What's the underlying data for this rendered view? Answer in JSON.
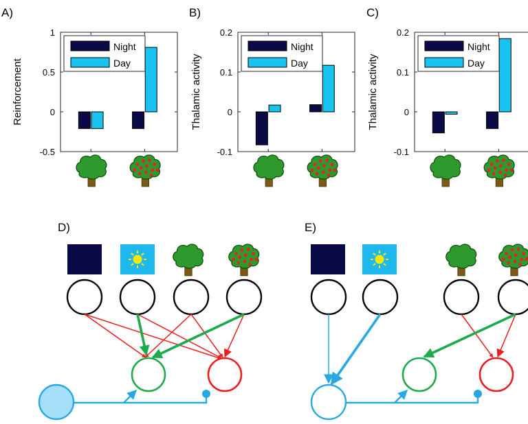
{
  "colors": {
    "night": "#0a0a46",
    "day": "#19c3f0",
    "tree_leaf": "#2e9a2e",
    "tree_trunk": "#7a5a14",
    "fruit": "#e8202a",
    "green_conn": "#1caa4a",
    "red_conn": "#ee1c1c",
    "blue_conn": "#27a8e3",
    "sun": "#ffe600",
    "moon": "#ffe600",
    "sky_night": "#0a0a46",
    "sky_day": "#1fb8ee"
  },
  "chart_data": [
    {
      "type": "bar",
      "panel": "A)",
      "ylabel": "Reinforcement",
      "ylim": [
        -0.5,
        1
      ],
      "yticks": [
        "-0.5",
        "0",
        "0.5",
        "1"
      ],
      "ytick_values": [
        -0.5,
        0,
        0.5,
        1
      ],
      "categories": [
        "tree",
        "fruit-tree"
      ],
      "series": [
        {
          "name": "Night",
          "values": [
            -0.21,
            -0.21
          ]
        },
        {
          "name": "Day",
          "values": [
            -0.21,
            0.81
          ]
        }
      ],
      "legend": "top-left"
    },
    {
      "type": "bar",
      "panel": "B)",
      "ylabel": "Thalamic activity",
      "ylim": [
        -0.1,
        0.2
      ],
      "yticks": [
        "-0.1",
        "0",
        "0.1",
        "0.2"
      ],
      "ytick_values": [
        -0.1,
        0,
        0.1,
        0.2
      ],
      "categories": [
        "tree",
        "fruit-tree"
      ],
      "series": [
        {
          "name": "Night",
          "values": [
            -0.083,
            0.018
          ]
        },
        {
          "name": "Day",
          "values": [
            0.017,
            0.117
          ]
        }
      ],
      "legend": "top-left"
    },
    {
      "type": "bar",
      "panel": "C)",
      "ylabel": "Thalamic activity",
      "ylim": [
        -0.1,
        0.2
      ],
      "yticks": [
        "-0.1",
        "0",
        "0.1",
        "0.2"
      ],
      "ytick_values": [
        -0.1,
        0,
        0.1,
        0.2
      ],
      "categories": [
        "tree",
        "fruit-tree"
      ],
      "series": [
        {
          "name": "Night",
          "values": [
            -0.053,
            -0.042
          ]
        },
        {
          "name": "Day",
          "values": [
            -0.006,
            0.184
          ]
        }
      ],
      "legend": "top-left"
    }
  ],
  "diagrams": {
    "d_label": "D)",
    "e_label": "E)"
  }
}
